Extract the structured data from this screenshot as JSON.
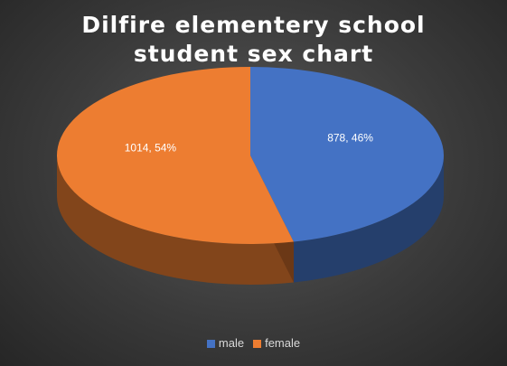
{
  "chart_data": {
    "type": "pie",
    "title": "Dilfire elementery school student sex chart",
    "slices": [
      {
        "name": "male",
        "value": 878,
        "percent": 46,
        "label": "878, 46%",
        "color": "#4472c4"
      },
      {
        "name": "female",
        "value": 1014,
        "percent": 54,
        "label": "1014, 54%",
        "color": "#ed7d31"
      }
    ],
    "legend": {
      "placement": "bottom",
      "entries": [
        "male",
        "female"
      ]
    },
    "style": "3d"
  }
}
